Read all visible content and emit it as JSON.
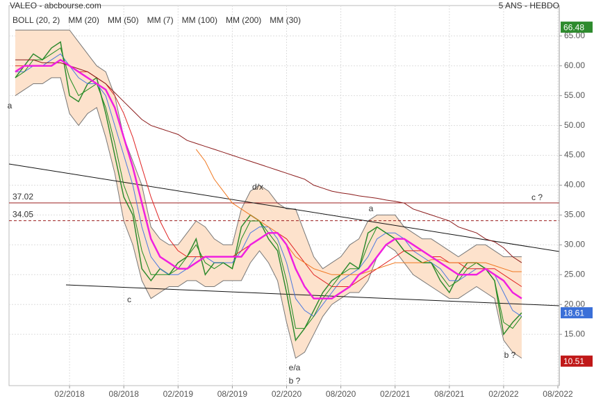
{
  "chart_data": {
    "type": "line",
    "title": "VALEO - abcbourse.com",
    "subtitle": "5 ANS - HEBDO",
    "x": [
      "08/2017",
      "09/2017",
      "10/2017",
      "11/2017",
      "12/2017",
      "01/2018",
      "02/2018",
      "03/2018",
      "04/2018",
      "05/2018",
      "06/2018",
      "07/2018",
      "08/2018",
      "09/2018",
      "10/2018",
      "11/2018",
      "12/2018",
      "01/2019",
      "02/2019",
      "03/2019",
      "04/2019",
      "05/2019",
      "06/2019",
      "07/2019",
      "08/2019",
      "09/2019",
      "10/2019",
      "11/2019",
      "12/2019",
      "01/2020",
      "02/2020",
      "03/2020",
      "04/2020",
      "05/2020",
      "06/2020",
      "07/2020",
      "08/2020",
      "09/2020",
      "10/2020",
      "11/2020",
      "12/2020",
      "01/2021",
      "02/2021",
      "03/2021",
      "04/2021",
      "05/2021",
      "06/2021",
      "07/2021",
      "08/2021",
      "09/2021",
      "10/2021",
      "11/2021",
      "12/2021",
      "01/2022",
      "02/2022",
      "03/2022",
      "04/2022"
    ],
    "price": {
      "color": "#2f8a2f",
      "values": [
        58,
        60,
        62,
        61,
        63,
        64,
        55,
        54,
        57,
        58,
        52,
        45,
        38,
        35,
        26,
        24,
        26,
        25,
        27,
        28,
        31,
        25,
        27,
        27,
        26,
        33,
        35,
        34,
        31,
        29,
        22,
        14,
        16,
        19,
        22,
        24,
        25,
        27,
        26,
        32,
        33,
        32,
        31,
        29,
        28,
        27,
        27,
        24,
        22,
        25,
        27,
        27,
        26,
        24,
        15,
        17,
        18.61
      ]
    },
    "bollinger": {
      "name": "BOLL (20, 2)",
      "color": "#777777",
      "fill": "#fde2cc",
      "upper": [
        66,
        66,
        66,
        66,
        66,
        66,
        66,
        64,
        62,
        60,
        59,
        55,
        48,
        44,
        40,
        33,
        31,
        30,
        30,
        32,
        34,
        33,
        31,
        30,
        30,
        36,
        39,
        40,
        39,
        37,
        36,
        36,
        32,
        28,
        26,
        27,
        28,
        30,
        31,
        34,
        35,
        35,
        35,
        33,
        32,
        31,
        31,
        30,
        29,
        28,
        29,
        30,
        30,
        29,
        28,
        28,
        28
      ],
      "lower": [
        55,
        56,
        57,
        57,
        58,
        58,
        52,
        50,
        52,
        53,
        48,
        42,
        34,
        30,
        24,
        21,
        22,
        23,
        23,
        24,
        24,
        23,
        23,
        24,
        24,
        24,
        27,
        29,
        27,
        24,
        17,
        11,
        12,
        15,
        18,
        20,
        21,
        22,
        22,
        24,
        28,
        30,
        29,
        27,
        25,
        24,
        23,
        22,
        21,
        21,
        22,
        23,
        22,
        21,
        14,
        12,
        11
      ]
    },
    "series": [
      {
        "name": "MM (20)",
        "color": "#4a78e0",
        "width": 1,
        "values": [
          59,
          59,
          60,
          60,
          61,
          62,
          60,
          58,
          57,
          57,
          55,
          50,
          45,
          40,
          33,
          28,
          26,
          25,
          25,
          26,
          28,
          28,
          27,
          27,
          27,
          29,
          32,
          33,
          33,
          31,
          27,
          21,
          19,
          18,
          20,
          22,
          24,
          25,
          26,
          28,
          31,
          32,
          32,
          31,
          29,
          28,
          27,
          26,
          24,
          24,
          25,
          26,
          26,
          25,
          22,
          19,
          18
        ]
      },
      {
        "name": "MM (50)",
        "color": "#e02424",
        "width": 1,
        "values": [
          60,
          60,
          60,
          60,
          60,
          61,
          60,
          59,
          59,
          58,
          57,
          55,
          52,
          48,
          43,
          38,
          34,
          31,
          29,
          28,
          28,
          28,
          28,
          28,
          28,
          29,
          30,
          31,
          32,
          32,
          31,
          29,
          27,
          25,
          24,
          23,
          23,
          23,
          24,
          25,
          26,
          27,
          28,
          29,
          29,
          29,
          28,
          28,
          27,
          27,
          26,
          26,
          26,
          26,
          25,
          24,
          23
        ]
      },
      {
        "name": "MM (7)",
        "color": "#1e8c1e",
        "width": 1,
        "values": [
          58,
          59,
          61,
          61,
          62,
          63,
          58,
          55,
          56,
          57,
          53,
          47,
          40,
          36,
          29,
          25,
          25,
          25,
          26,
          28,
          30,
          27,
          26,
          27,
          26,
          31,
          34,
          34,
          32,
          30,
          24,
          16,
          16,
          18,
          21,
          23,
          25,
          26,
          26,
          30,
          33,
          32,
          31,
          29,
          28,
          27,
          27,
          25,
          23,
          24,
          26,
          27,
          26,
          24,
          17,
          16,
          18
        ]
      },
      {
        "name": "MM (100)",
        "color": "#f07820",
        "width": 1,
        "values": [
          null,
          null,
          null,
          null,
          null,
          null,
          null,
          null,
          null,
          null,
          null,
          null,
          null,
          null,
          null,
          null,
          null,
          null,
          null,
          null,
          46,
          44,
          41,
          39,
          37,
          36,
          35,
          34,
          33,
          32,
          30,
          28,
          27,
          26,
          25.5,
          25,
          25,
          25,
          25,
          25.5,
          26,
          26.5,
          27,
          27,
          27,
          27,
          27.5,
          27.5,
          27,
          27,
          27,
          27,
          27,
          26.5,
          26,
          25.5,
          25.5
        ]
      },
      {
        "name": "MM (200)",
        "color": "#8b1a1a",
        "width": 1,
        "values": [
          61,
          61,
          61,
          60.5,
          60.5,
          60.5,
          60,
          59.5,
          59,
          58,
          57,
          55.5,
          54,
          52.5,
          51,
          50,
          49.5,
          49,
          48.5,
          47.5,
          47,
          46.5,
          46,
          45.5,
          45,
          44.5,
          44,
          43.5,
          43,
          42.5,
          42,
          41.5,
          41,
          40,
          39.5,
          39,
          38.7,
          38.5,
          38.2,
          38,
          37.8,
          37.5,
          37.3,
          37,
          36,
          35.5,
          35,
          34.5,
          34,
          33,
          32.5,
          32,
          31,
          30.5,
          29.5,
          28,
          27
        ]
      },
      {
        "name": "MM (30)",
        "color": "#f020e0",
        "width": 2.5,
        "values": [
          59,
          60,
          60,
          60,
          60,
          61,
          60,
          59,
          58,
          57,
          56,
          53,
          48,
          43,
          37,
          31,
          28,
          27,
          26,
          26,
          27,
          28,
          28,
          28,
          28,
          28,
          30,
          31,
          32,
          32,
          30,
          26,
          23,
          21,
          21,
          21,
          22,
          23,
          25,
          26,
          28,
          30,
          31,
          31,
          30,
          29,
          28,
          27,
          26,
          25,
          25,
          25,
          26,
          25,
          24,
          22,
          21
        ]
      }
    ],
    "levels": [
      {
        "value": 37.02,
        "color": "#9b1c1c",
        "dashed": false
      },
      {
        "value": 34.05,
        "color": "#9b1c1c",
        "dashed": true
      }
    ],
    "tags": [
      {
        "value": 66.48,
        "color": "#2e8b2e"
      },
      {
        "value": 18.61,
        "color": "#3a6fd8"
      },
      {
        "value": 10.51,
        "color": "#c01818"
      }
    ],
    "annotations": [
      {
        "text": "a",
        "color": "#9b1c1c"
      },
      {
        "text": "c",
        "color": "#9b1c1c"
      },
      {
        "text": "d/x",
        "color": "#9b1c1c"
      },
      {
        "text": "e/a",
        "color": "#9b1c1c"
      },
      {
        "text": "b ?",
        "color": "#1a1a80"
      },
      {
        "text": "a",
        "color": "#1a1a80"
      },
      {
        "text": "c ?",
        "color": "#1a1a80"
      },
      {
        "text": "b ?",
        "color": "#1a1a80"
      }
    ],
    "xlim": [
      "07/2017",
      "08/2022"
    ],
    "xticks": [
      "02/2018",
      "08/2018",
      "02/2019",
      "08/2019",
      "02/2020",
      "08/2020",
      "02/2021",
      "08/2021",
      "02/2022",
      "08/2022"
    ],
    "ylim": [
      6.4,
      70.1
    ],
    "yticks": [
      {
        "value": 15,
        "label": "15.00"
      },
      {
        "value": 20,
        "label": "20.00"
      },
      {
        "value": 25,
        "label": "25.00"
      },
      {
        "value": 30,
        "label": "30.00"
      },
      {
        "value": 35,
        "label": "35.00"
      },
      {
        "value": 40,
        "label": "40.00"
      },
      {
        "value": 45,
        "label": "45.00"
      },
      {
        "value": 50,
        "label": "50.00"
      },
      {
        "value": 55,
        "label": "55.00"
      },
      {
        "value": 60,
        "label": "60.00"
      },
      {
        "value": 65,
        "label": "65.00"
      }
    ],
    "grid": true
  }
}
